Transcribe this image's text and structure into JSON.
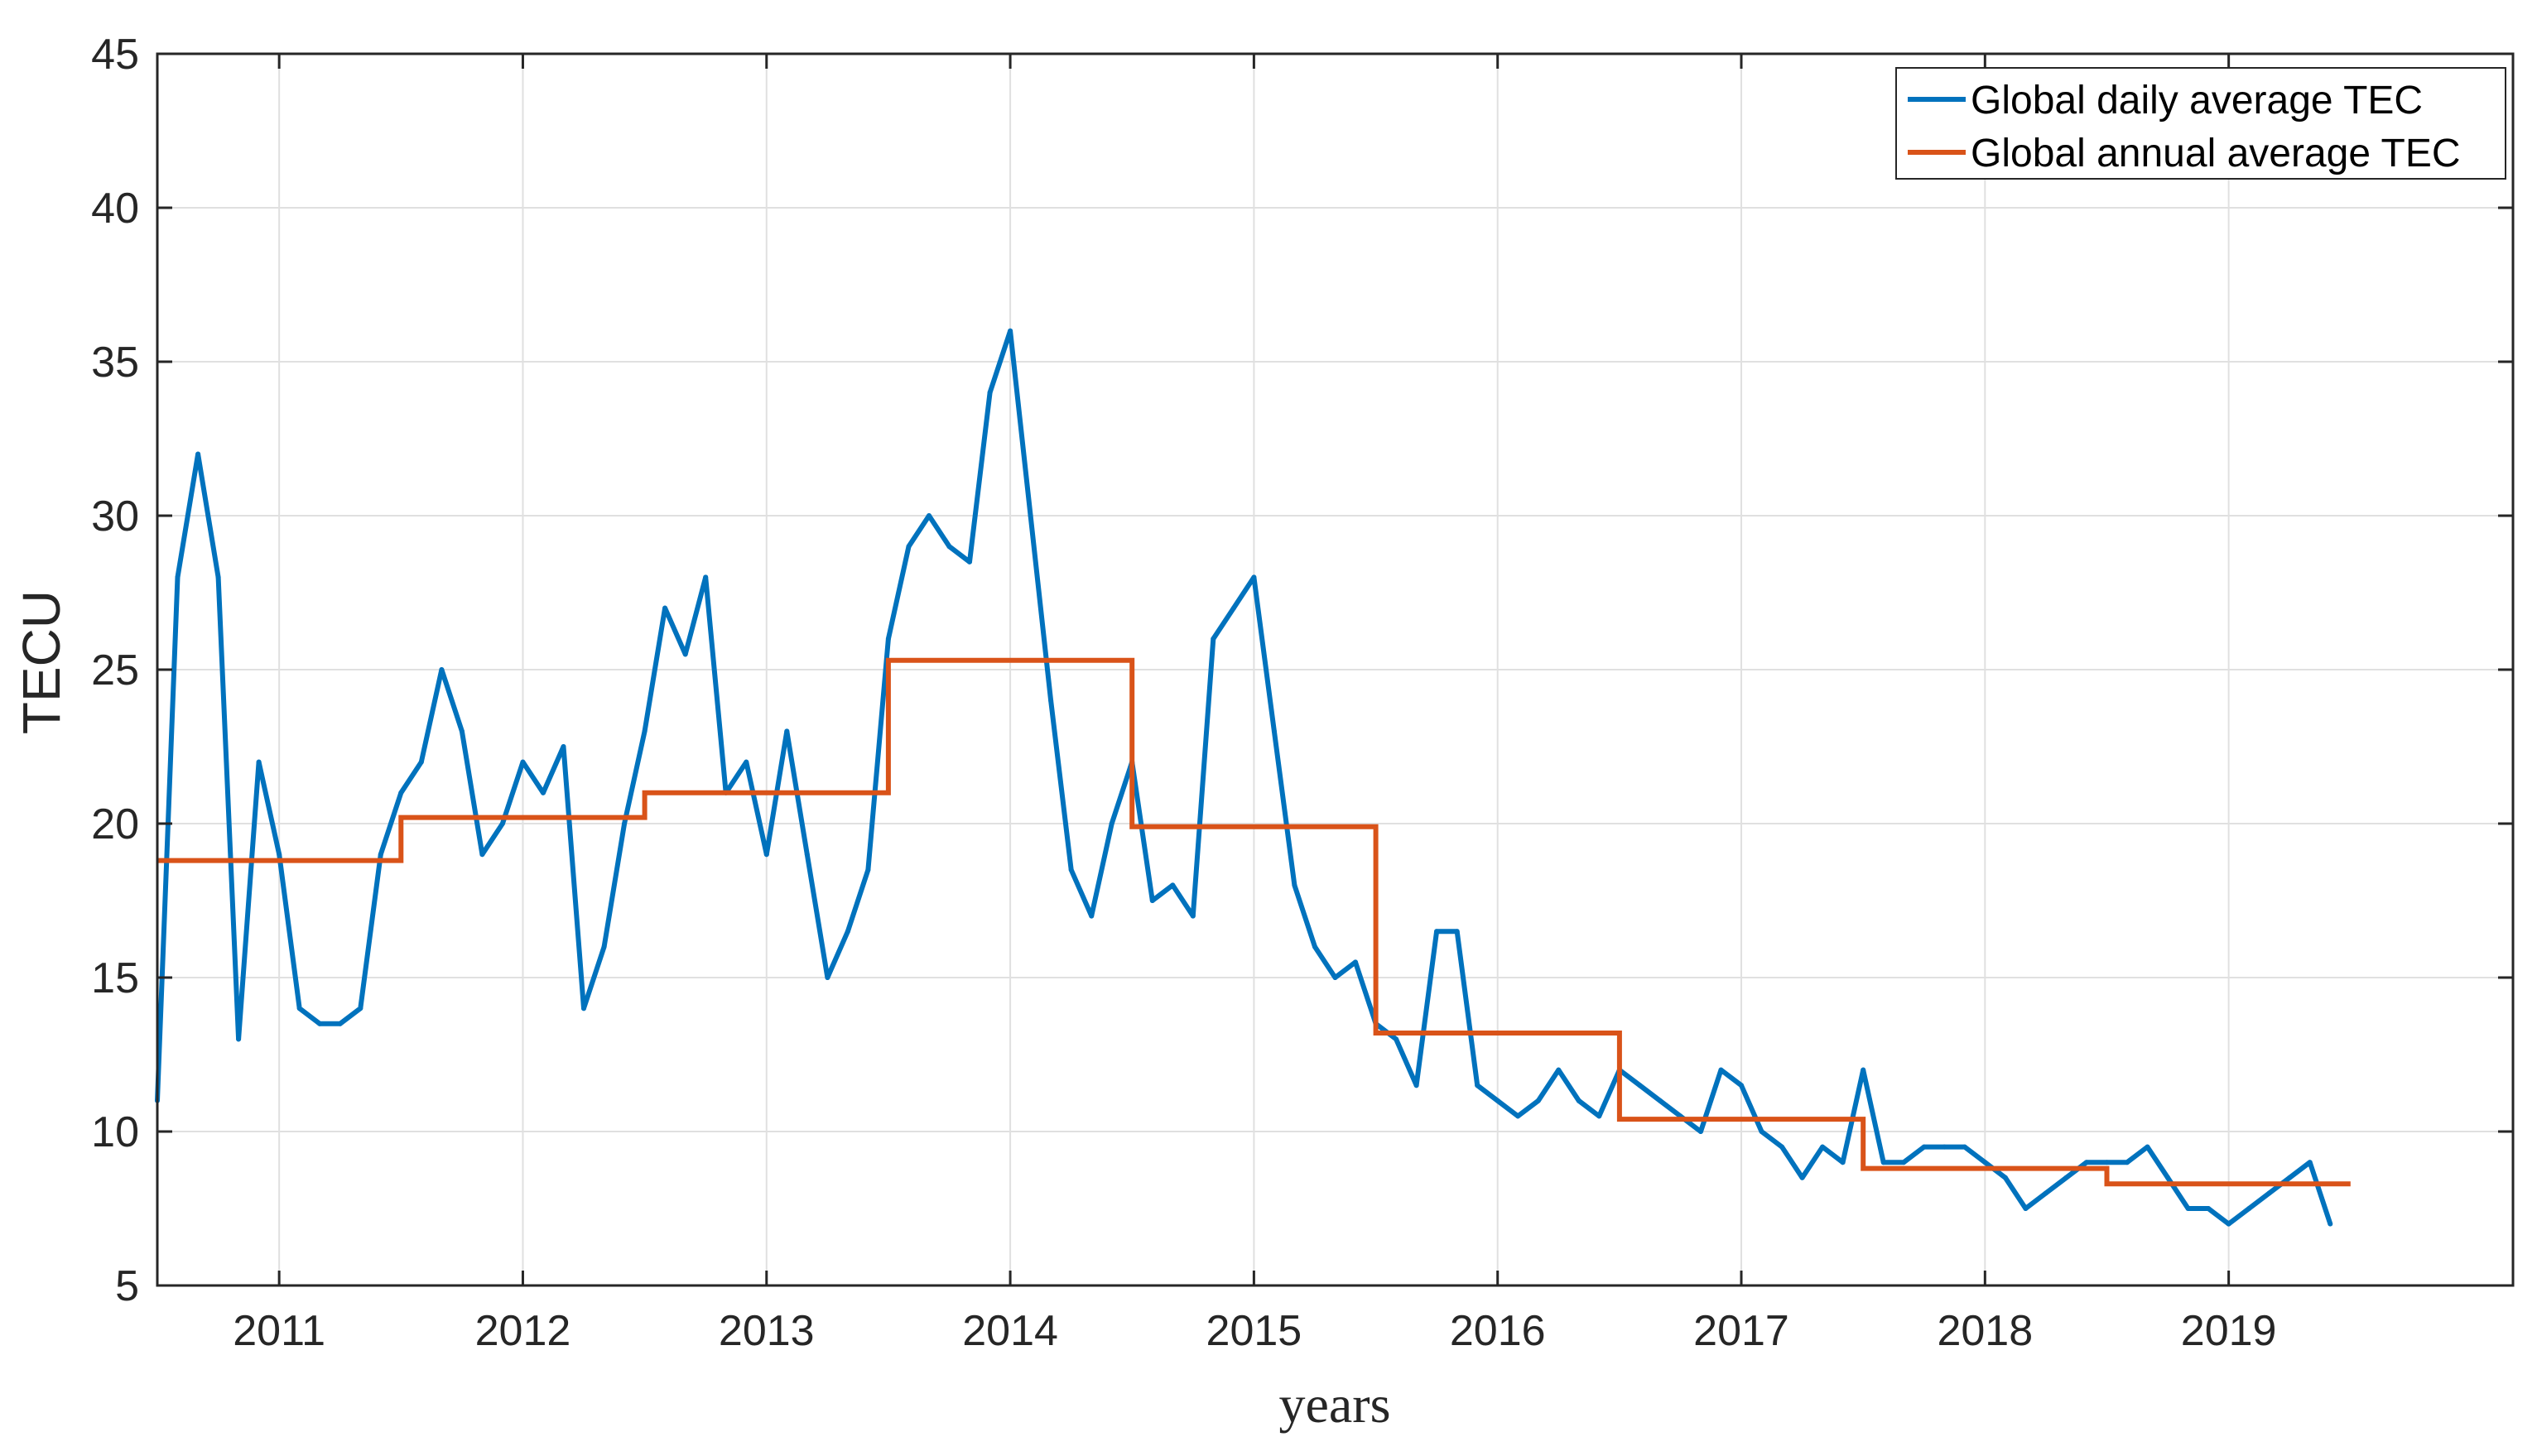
{
  "chart_data": {
    "type": "line",
    "title": "",
    "xlabel": "years",
    "ylabel": "TECU",
    "xlim": [
      "2010-07",
      "2020-03"
    ],
    "ylim": [
      5,
      45
    ],
    "yticks": [
      5,
      10,
      15,
      20,
      25,
      30,
      35,
      40,
      45
    ],
    "xticks": [
      "2011",
      "2012",
      "2013",
      "2014",
      "2015",
      "2016",
      "2017",
      "2018",
      "2019"
    ],
    "grid": true,
    "legend_position": "top-right",
    "colors": {
      "daily": "#0072BD",
      "annual": "#D95319",
      "grid": "#e0e0e0",
      "axis": "#262626"
    },
    "series": [
      {
        "name": "Global daily average TEC",
        "style": "daily",
        "x": [
          "2010-07",
          "2010-08",
          "2010-09",
          "2010-10",
          "2010-11",
          "2010-12",
          "2011-01",
          "2011-02",
          "2011-03",
          "2011-04",
          "2011-05",
          "2011-06",
          "2011-07",
          "2011-08",
          "2011-09",
          "2011-10",
          "2011-11",
          "2011-12",
          "2012-01",
          "2012-02",
          "2012-03",
          "2012-04",
          "2012-05",
          "2012-06",
          "2012-07",
          "2012-08",
          "2012-09",
          "2012-10",
          "2012-11",
          "2012-12",
          "2013-01",
          "2013-02",
          "2013-03",
          "2013-04",
          "2013-05",
          "2013-06",
          "2013-07",
          "2013-08",
          "2013-09",
          "2013-10",
          "2013-11",
          "2013-12",
          "2014-01",
          "2014-02",
          "2014-03",
          "2014-04",
          "2014-05",
          "2014-06",
          "2014-07",
          "2014-08",
          "2014-09",
          "2014-10",
          "2014-11",
          "2014-12",
          "2015-01",
          "2015-02",
          "2015-03",
          "2015-04",
          "2015-05",
          "2015-06",
          "2015-07",
          "2015-08",
          "2015-09",
          "2015-10",
          "2015-11",
          "2015-12",
          "2016-01",
          "2016-02",
          "2016-03",
          "2016-04",
          "2016-05",
          "2016-06",
          "2016-07",
          "2016-08",
          "2016-09",
          "2016-10",
          "2016-11",
          "2016-12",
          "2017-01",
          "2017-02",
          "2017-03",
          "2017-04",
          "2017-05",
          "2017-06",
          "2017-07",
          "2017-08",
          "2017-09",
          "2017-10",
          "2017-11",
          "2017-12",
          "2018-01",
          "2018-02",
          "2018-03",
          "2018-04",
          "2018-05",
          "2018-06",
          "2018-07",
          "2018-08",
          "2018-09",
          "2018-10",
          "2018-11",
          "2018-12",
          "2019-01",
          "2019-02",
          "2019-03",
          "2019-04",
          "2019-05",
          "2019-06"
        ],
        "y": [
          11.0,
          28.0,
          32.0,
          28.0,
          13.0,
          22.0,
          19.0,
          14.0,
          13.5,
          13.5,
          14.0,
          19.0,
          21.0,
          22.0,
          25.0,
          23.0,
          19.0,
          20.0,
          22.0,
          21.0,
          22.5,
          14.0,
          16.0,
          20.0,
          23.0,
          27.0,
          25.5,
          28.0,
          21.0,
          22.0,
          19.0,
          23.0,
          19.0,
          15.0,
          16.5,
          18.5,
          26.0,
          29.0,
          30.0,
          29.0,
          28.5,
          34.0,
          36.0,
          30.0,
          24.0,
          18.5,
          17.0,
          20.0,
          22.0,
          17.5,
          18.0,
          17.0,
          26.0,
          27.0,
          28.0,
          23.0,
          18.0,
          16.0,
          15.0,
          15.5,
          13.5,
          13.0,
          11.5,
          16.5,
          16.5,
          11.5,
          11.0,
          10.5,
          11.0,
          12.0,
          11.0,
          10.5,
          12.0,
          11.5,
          11.0,
          10.5,
          10.0,
          12.0,
          11.5,
          10.0,
          9.5,
          8.5,
          9.5,
          9.0,
          12.0,
          9.0,
          9.0,
          9.5,
          9.5,
          9.5,
          9.0,
          8.5,
          7.5,
          8.0,
          8.5,
          9.0,
          9.0,
          9.0,
          9.5,
          8.5,
          7.5,
          7.5,
          7.0,
          7.5,
          8.0,
          8.5,
          9.0,
          7.0
        ]
      },
      {
        "name": "Global annual average TEC",
        "style": "annual",
        "x": [
          "2010-07",
          "2011-07",
          "2012-07",
          "2013-07",
          "2014-07",
          "2015-07",
          "2016-07",
          "2017-07",
          "2018-07",
          "2019-07"
        ],
        "y": [
          18.8,
          20.2,
          21.0,
          25.3,
          19.9,
          13.2,
          10.4,
          8.8,
          8.3,
          8.3
        ]
      }
    ]
  }
}
